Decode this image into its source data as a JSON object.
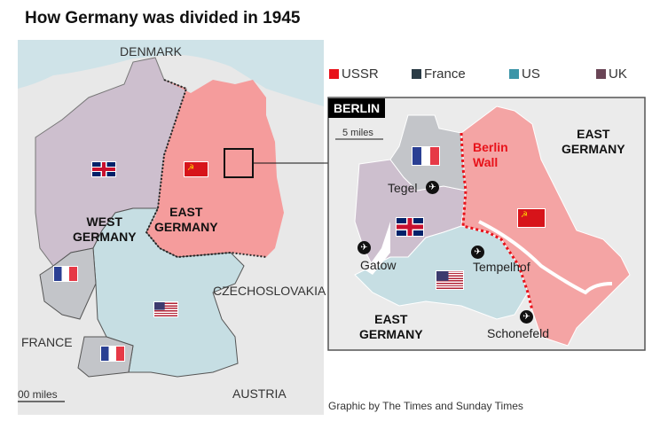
{
  "title": "How Germany was divided in 1945",
  "colors": {
    "USSR": "#e8121a",
    "France": "#2a3b45",
    "US": "#3c95a8",
    "UK": "#6a4556",
    "ussr_zone": "#f59c9c",
    "uk_zone": "#cdbfce",
    "us_zone": "#c6dee3",
    "france_zone": "#c3c5c9"
  },
  "legend": [
    {
      "label": "USSR",
      "color": "#e8121a"
    },
    {
      "label": "France",
      "color": "#2a3b45"
    },
    {
      "label": "US",
      "color": "#3c95a8"
    },
    {
      "label": "UK",
      "color": "#6a4556"
    }
  ],
  "main_map": {
    "countries": {
      "denmark": "DENMARK",
      "czechoslovakia": "CZECHOSLOVAKIA",
      "france": "FRANCE",
      "austria": "AUSTRIA"
    },
    "west_germany": [
      "WEST",
      "GERMANY"
    ],
    "east_germany": [
      "EAST",
      "GERMANY"
    ],
    "scale": "00 miles"
  },
  "berlin": {
    "tag": "BERLIN",
    "scale": "5 miles",
    "wall": [
      "Berlin",
      "Wall"
    ],
    "east_germany_ne": [
      "EAST",
      "GERMANY"
    ],
    "east_germany_sw": [
      "EAST",
      "GERMANY"
    ],
    "airports": [
      "Tegel",
      "Gatow",
      "Tempelhof",
      "Schonefeld"
    ]
  },
  "credit": "Graphic by The Times and Sunday Times"
}
